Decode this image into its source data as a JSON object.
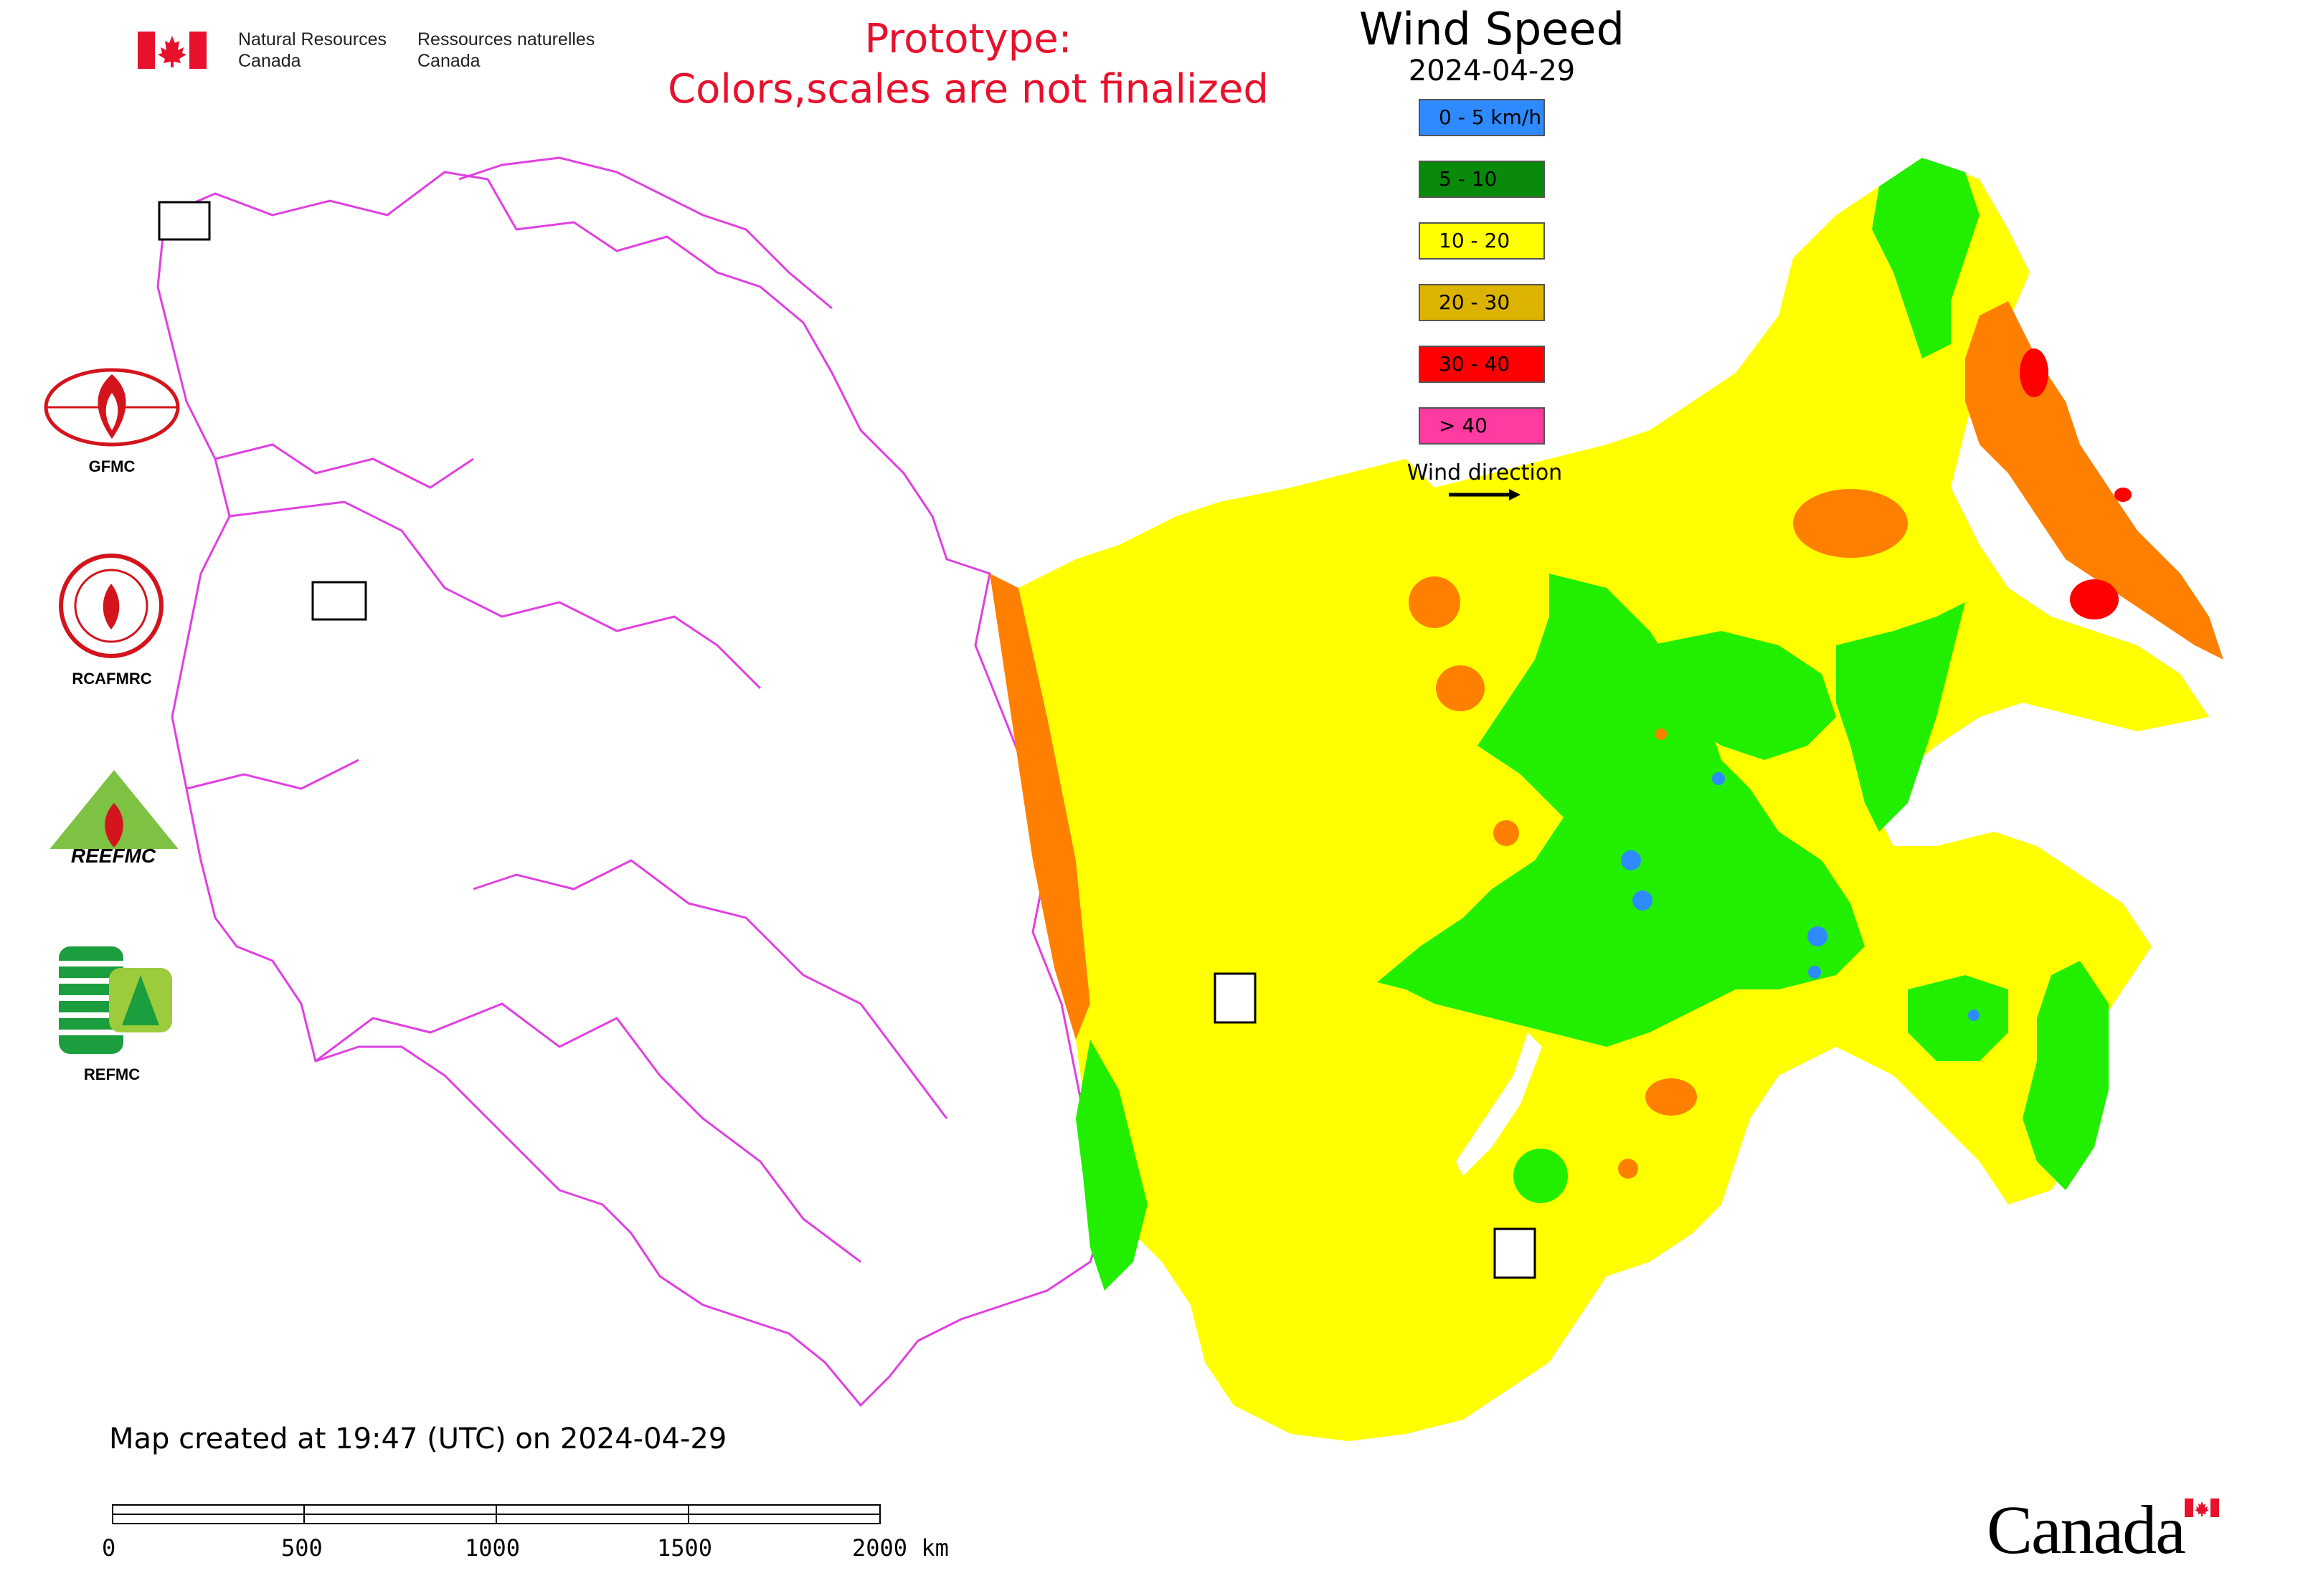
{
  "header": {
    "dept_en_line1": "Natural Resources",
    "dept_en_line2": "Canada",
    "dept_fr_line1": "Ressources naturelles",
    "dept_fr_line2": "Canada",
    "prototype_line1": "Prototype:",
    "prototype_line2": "Colors,scales are not finalized",
    "title": "Wind Speed",
    "date": "2024-04-29"
  },
  "legend": {
    "items": [
      {
        "label": "0 - 5 km/h",
        "color": "#2e8bff"
      },
      {
        "label": "5 - 10",
        "color": "#0a8a0a"
      },
      {
        "label": "10 - 20",
        "color": "#ffff00"
      },
      {
        "label": "20 - 30",
        "color": "#dcb400"
      },
      {
        "label": "30 - 40",
        "color": "#ff0000"
      },
      {
        "label": "> 40",
        "color": "#ff3aa0"
      }
    ],
    "wind_direction_label": "Wind direction"
  },
  "orgs": [
    {
      "name": "GFMC",
      "icon": "gfmc-logo-icon"
    },
    {
      "name": "RCAFMRC",
      "icon": "rcafmrc-logo-icon"
    },
    {
      "name": "REEFMC",
      "icon": "reefmc-logo-icon"
    },
    {
      "name": "REFMC",
      "icon": "refmc-logo-icon"
    }
  ],
  "map_colors": {
    "border": "#e040e0",
    "very_low": "#2e8bff",
    "low": "#22ee00",
    "moderate": "#ffff00",
    "high": "#ff8000",
    "very_high": "#ff0000"
  },
  "footer": {
    "created": "Map created at 19:47 (UTC) on 2024-04-29",
    "scale_ticks": [
      "0",
      "500",
      "1000",
      "1500",
      "2000 km"
    ],
    "wordmark": "Canada"
  }
}
